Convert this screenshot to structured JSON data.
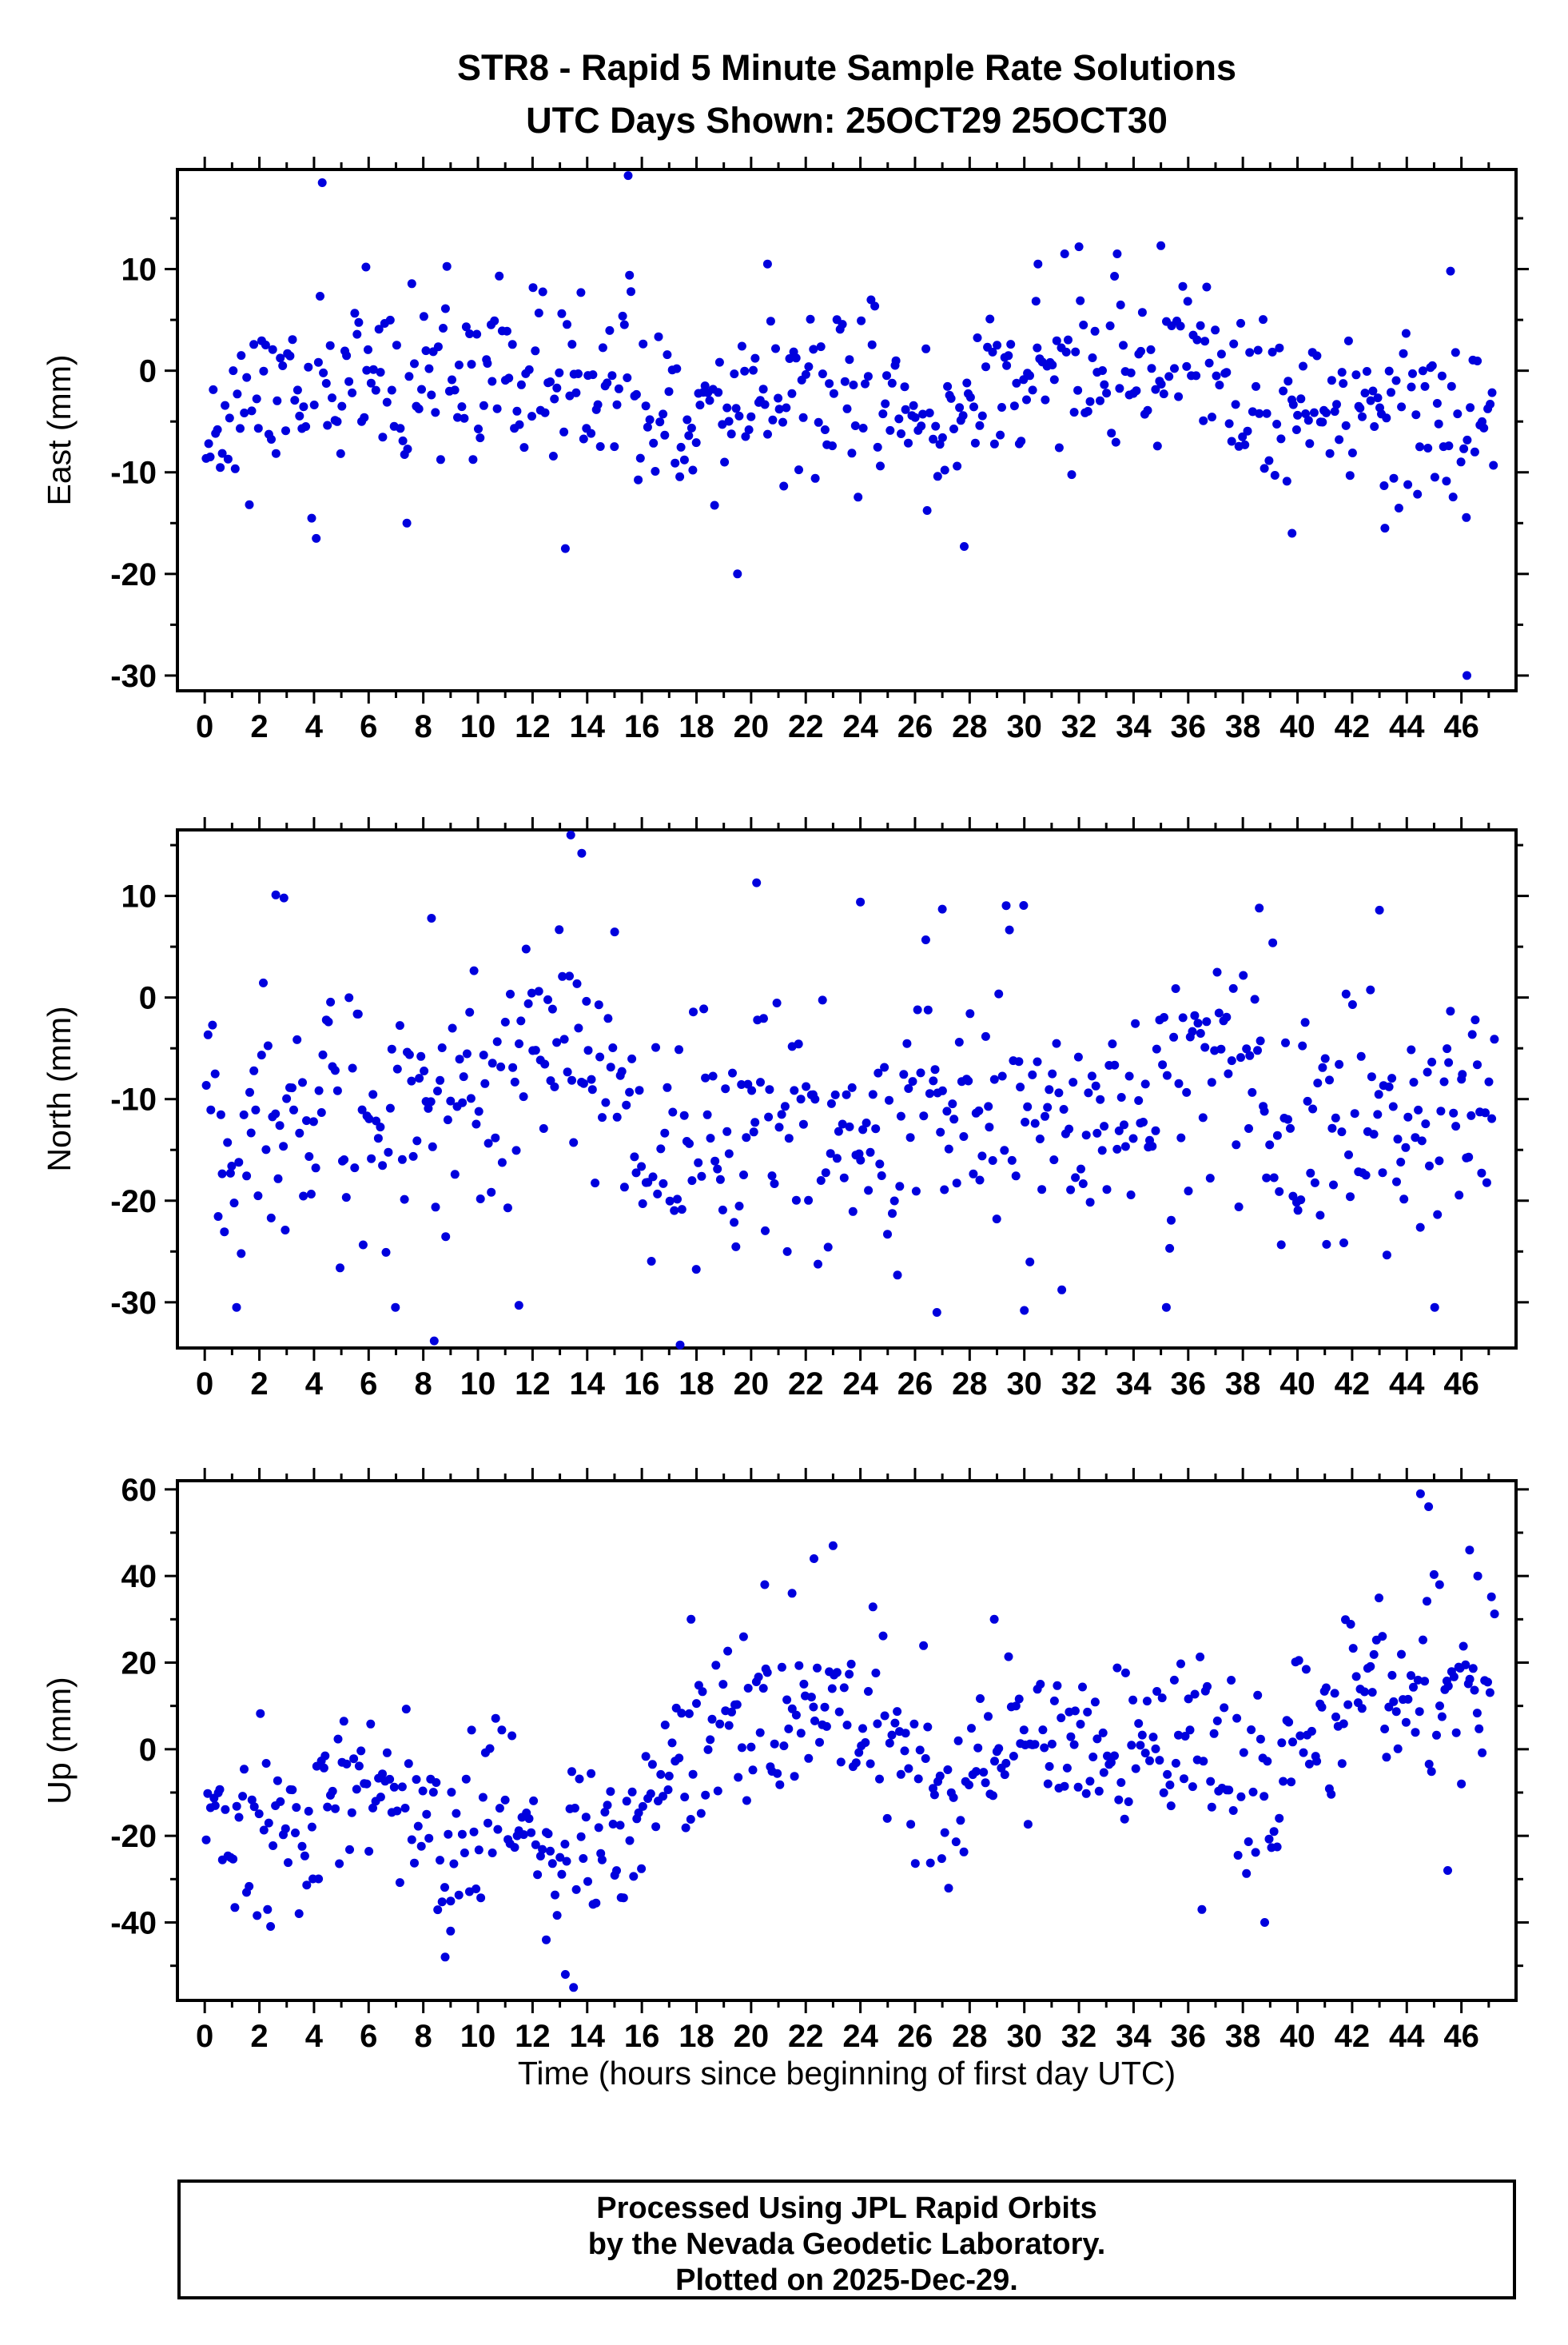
{
  "title": {
    "line1": "STR8 - Rapid 5 Minute Sample Rate Solutions",
    "line2": "UTC Days Shown:  25OCT29 25OCT30"
  },
  "footer": {
    "line1": "Processed Using JPL Rapid Orbits",
    "line2": "by the Nevada Geodetic Laboratory.",
    "line3": "Plotted on 2025-Dec-29."
  },
  "point_color": "#0000DD",
  "x_axis": {
    "label": "Time (hours since beginning of first day UTC)",
    "range": [
      -1,
      48
    ],
    "major_ticks": [
      0,
      2,
      4,
      6,
      8,
      10,
      12,
      14,
      16,
      18,
      20,
      22,
      24,
      26,
      28,
      30,
      32,
      34,
      36,
      38,
      40,
      42,
      44,
      46
    ],
    "minor_step": 1
  },
  "chart_data": [
    {
      "type": "scatter",
      "name": "East",
      "ylabel": "East (mm)",
      "ylim": [
        -31.5,
        19.8
      ],
      "y_major": [
        -30,
        -20,
        -10,
        0,
        10
      ],
      "y_minor": [
        -25,
        -15,
        -5,
        5,
        15
      ],
      "units": "mm",
      "distribution": {
        "seed": 11,
        "n": 540,
        "x_range": [
          0.05,
          47.2
        ],
        "std": 4.2,
        "clip": [
          -16.5,
          11.5
        ],
        "mean_profile": [
          [
            0,
            -5
          ],
          [
            2,
            -3
          ],
          [
            4,
            -2
          ],
          [
            6,
            -2
          ],
          [
            8,
            -1
          ],
          [
            10,
            -1
          ],
          [
            12,
            -1
          ],
          [
            14,
            -2
          ],
          [
            16,
            -3
          ],
          [
            18,
            -4
          ],
          [
            20,
            -3
          ],
          [
            22,
            -2
          ],
          [
            24,
            -2
          ],
          [
            25,
            -4
          ],
          [
            26,
            -5
          ],
          [
            27,
            -5
          ],
          [
            28,
            -1
          ],
          [
            30,
            -1
          ],
          [
            32,
            -1
          ],
          [
            34,
            0
          ],
          [
            36,
            1
          ],
          [
            37,
            0
          ],
          [
            38,
            -4
          ],
          [
            40,
            -5
          ],
          [
            42,
            -4
          ],
          [
            44,
            -4
          ],
          [
            46,
            -4
          ],
          [
            47,
            -3
          ]
        ]
      },
      "outliers": [
        [
          4.3,
          18.5
        ],
        [
          15.5,
          19.2
        ],
        [
          19.5,
          -20
        ],
        [
          46.2,
          -30
        ],
        [
          13.2,
          -17.5
        ],
        [
          27.8,
          -17.3
        ],
        [
          39.8,
          -16
        ],
        [
          7.4,
          -15
        ],
        [
          43.2,
          -15.5
        ],
        [
          32.0,
          12.2
        ],
        [
          33.4,
          11.5
        ],
        [
          35.0,
          12.3
        ],
        [
          5.9,
          10.2
        ],
        [
          30.5,
          10.5
        ],
        [
          20.6,
          10.5
        ],
        [
          45.6,
          9.8
        ]
      ]
    },
    {
      "type": "scatter",
      "name": "North",
      "ylabel": "North (mm)",
      "ylim": [
        -34.5,
        16.5
      ],
      "y_major": [
        -30,
        -20,
        -10,
        0,
        10
      ],
      "y_minor": [
        -25,
        -15,
        -5,
        5,
        15
      ],
      "units": "mm",
      "distribution": {
        "seed": 22,
        "n": 540,
        "x_range": [
          0.05,
          47.2
        ],
        "std": 6.0,
        "clip": [
          -30.5,
          10.5
        ],
        "mean_profile": [
          [
            0,
            -10
          ],
          [
            1,
            -14
          ],
          [
            2,
            -11
          ],
          [
            3,
            -10
          ],
          [
            4,
            -11
          ],
          [
            6,
            -12
          ],
          [
            8,
            -12
          ],
          [
            10,
            -9
          ],
          [
            12,
            -9
          ],
          [
            13,
            -4
          ],
          [
            14,
            -7
          ],
          [
            16,
            -12
          ],
          [
            17,
            -14
          ],
          [
            18,
            -13
          ],
          [
            19,
            -12
          ],
          [
            20,
            -11
          ],
          [
            21,
            -13
          ],
          [
            22,
            -12
          ],
          [
            24,
            -13
          ],
          [
            26,
            -12
          ],
          [
            27,
            -11
          ],
          [
            28,
            -9
          ],
          [
            29,
            -10
          ],
          [
            30,
            -12
          ],
          [
            31,
            -13
          ],
          [
            32,
            -14
          ],
          [
            33,
            -12
          ],
          [
            34,
            -11
          ],
          [
            35,
            -12
          ],
          [
            36,
            -7
          ],
          [
            37,
            -5
          ],
          [
            38,
            -5
          ],
          [
            39,
            -8
          ],
          [
            40,
            -12
          ],
          [
            41,
            -13
          ],
          [
            42,
            -11
          ],
          [
            43,
            -12
          ],
          [
            44,
            -13
          ],
          [
            45,
            -11
          ],
          [
            46,
            -9
          ],
          [
            47,
            -10
          ]
        ]
      },
      "outliers": [
        [
          13.4,
          16
        ],
        [
          13.8,
          14.2
        ],
        [
          2.6,
          10.1
        ],
        [
          2.9,
          9.8
        ],
        [
          8.4,
          -33.8
        ],
        [
          17.4,
          -34.2
        ],
        [
          20.2,
          11.3
        ],
        [
          11.5,
          -30.3
        ],
        [
          26.8,
          -31
        ],
        [
          30.0,
          -30.8
        ],
        [
          35.2,
          -30.5
        ],
        [
          38.6,
          8.8
        ],
        [
          43.0,
          8.6
        ],
        [
          8.3,
          7.8
        ],
        [
          24.0,
          9.4
        ],
        [
          27.0,
          8.7
        ]
      ]
    },
    {
      "type": "scatter",
      "name": "Up",
      "ylabel": "Up (mm)",
      "ylim": [
        -58,
        62
      ],
      "y_major": [
        -40,
        -20,
        0,
        20,
        40,
        60
      ],
      "y_minor": [
        -50,
        -30,
        -10,
        10,
        30,
        50
      ],
      "units": "mm",
      "distribution": {
        "seed": 33,
        "n": 540,
        "x_range": [
          0.05,
          47.2
        ],
        "std": 10,
        "clip": [
          -46,
          45
        ],
        "mean_profile": [
          [
            0,
            -15
          ],
          [
            1,
            -20
          ],
          [
            2,
            -16
          ],
          [
            3,
            -20
          ],
          [
            4,
            -18
          ],
          [
            5,
            -12
          ],
          [
            6,
            -2
          ],
          [
            7,
            -10
          ],
          [
            8,
            -20
          ],
          [
            9,
            -25
          ],
          [
            10,
            -15
          ],
          [
            11,
            -12
          ],
          [
            12,
            -22
          ],
          [
            13,
            -30
          ],
          [
            14,
            -25
          ],
          [
            15,
            -20
          ],
          [
            16,
            -18
          ],
          [
            17,
            -10
          ],
          [
            18,
            2
          ],
          [
            19,
            5
          ],
          [
            20,
            5
          ],
          [
            21,
            3
          ],
          [
            22,
            8
          ],
          [
            23,
            8
          ],
          [
            24,
            2
          ],
          [
            25,
            0
          ],
          [
            26,
            -2
          ],
          [
            27,
            -15
          ],
          [
            28,
            -8
          ],
          [
            29,
            0
          ],
          [
            30,
            5
          ],
          [
            31,
            5
          ],
          [
            32,
            0
          ],
          [
            33,
            -2
          ],
          [
            34,
            0
          ],
          [
            35,
            -2
          ],
          [
            36,
            5
          ],
          [
            37,
            3
          ],
          [
            38,
            -2
          ],
          [
            39,
            -8
          ],
          [
            40,
            3
          ],
          [
            41,
            8
          ],
          [
            42,
            15
          ],
          [
            43,
            12
          ],
          [
            44,
            15
          ],
          [
            45,
            18
          ],
          [
            46,
            12
          ],
          [
            47,
            15
          ]
        ]
      },
      "outliers": [
        [
          13.5,
          -55
        ],
        [
          13.2,
          -52
        ],
        [
          44.5,
          59
        ],
        [
          44.8,
          56
        ],
        [
          23.0,
          47
        ],
        [
          22.3,
          44
        ],
        [
          20.5,
          38
        ],
        [
          21.5,
          36
        ],
        [
          46.3,
          46
        ],
        [
          46.6,
          40
        ],
        [
          45.2,
          38
        ],
        [
          17.8,
          30
        ],
        [
          28.9,
          30
        ],
        [
          9.0,
          -42
        ],
        [
          12.5,
          -44
        ],
        [
          8.8,
          -48
        ],
        [
          2.3,
          -37
        ],
        [
          36.5,
          -37
        ],
        [
          38.8,
          -40
        ],
        [
          45.5,
          -28
        ],
        [
          46.0,
          -8
        ]
      ]
    }
  ]
}
